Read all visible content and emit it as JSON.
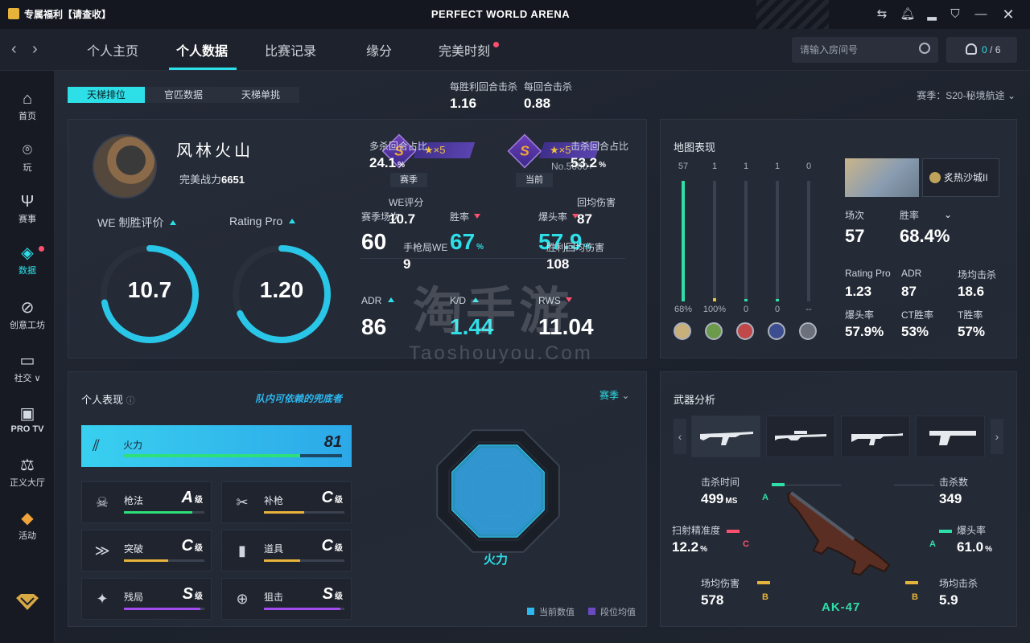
{
  "titlebar": {
    "promo": "专属福利【请查收】",
    "title": "PERFECT WORLD ARENA"
  },
  "nav": {
    "tabs": [
      "个人主页",
      "个人数据",
      "比赛记录",
      "缘分",
      "完美时刻"
    ],
    "active_tab": "个人数据",
    "room_placeholder": "请输入房间号",
    "friends_online": "0",
    "friends_total": "/ 6"
  },
  "sidebar": {
    "items": [
      {
        "label": "首页",
        "icon": "home-icon"
      },
      {
        "label": "玩",
        "icon": "play-icon"
      },
      {
        "label": "赛事",
        "icon": "trophy-icon"
      },
      {
        "label": "数据",
        "icon": "data-icon"
      },
      {
        "label": "创意工坊",
        "icon": "planet-icon"
      },
      {
        "label": "社交 ∨",
        "icon": "chat-icon"
      },
      {
        "label": "PRO TV",
        "icon": "tv-icon"
      },
      {
        "label": "正义大厅",
        "icon": "scale-icon"
      },
      {
        "label": "活动",
        "icon": "bag-icon"
      }
    ],
    "active": "数据"
  },
  "subtabs": [
    "天梯排位",
    "官匹数据",
    "天梯单挑"
  ],
  "season": "赛季：S20-秘境航途",
  "profile": {
    "name": "风林火山",
    "power_label": "完美战力",
    "power": "6651",
    "rank_season": {
      "letter": "S",
      "stars": "★×5",
      "label": "赛季"
    },
    "rank_current": {
      "letter": "S",
      "stars": "★×5",
      "label": "当前",
      "no": "No.5000+"
    },
    "we_label": "WE 制胜评价",
    "we_value": "10.7",
    "we_fraction": 0.72,
    "rating_label": "Rating Pro",
    "rating_value": "1.20",
    "rating_fraction": 0.68,
    "stats": [
      {
        "label": "赛季场次",
        "value": "60",
        "trend": "",
        "unit": ""
      },
      {
        "label": "胜率",
        "value": "67",
        "trend": "down",
        "unit": "%",
        "cyan": true
      },
      {
        "label": "爆头率",
        "value": "57.9",
        "trend": "down",
        "unit": "%",
        "cyan": true
      },
      {
        "label": "ADR",
        "value": "86",
        "trend": "up",
        "unit": ""
      },
      {
        "label": "K/D",
        "value": "1.44",
        "trend": "up",
        "unit": "",
        "cyan": true
      },
      {
        "label": "RWS",
        "value": "11.04",
        "trend": "down",
        "unit": ""
      }
    ]
  },
  "watermark": {
    "cn": "淘手游",
    "en": "Taoshouyou.Com"
  },
  "map_panel": {
    "title": "地图表现",
    "bars": [
      {
        "count": "57",
        "rate": "68%",
        "fill": 1.0,
        "color": "#2ee0a8"
      },
      {
        "count": "1",
        "rate": "100%",
        "fill": 0.03,
        "color": "#e8c33a"
      },
      {
        "count": "1",
        "rate": "0",
        "fill": 0.02,
        "color": "#2ee0a8"
      },
      {
        "count": "1",
        "rate": "0",
        "fill": 0.02,
        "color": "#2ee0a8"
      },
      {
        "count": "0",
        "rate": "--",
        "fill": 0.0,
        "color": "#2ee0a8"
      }
    ],
    "selected_map": "炙热沙城II",
    "matches_label": "场次",
    "matches": "57",
    "winrate_label": "胜率",
    "winrate": "68.4%",
    "details": [
      {
        "label": "Rating Pro",
        "value": "1.23"
      },
      {
        "label": "ADR",
        "value": "87"
      },
      {
        "label": "场均击杀",
        "value": "18.6"
      },
      {
        "label": "爆头率",
        "value": "57.9%"
      },
      {
        "label": "CT胜率",
        "value": "53%"
      },
      {
        "label": "T胜率",
        "value": "57%"
      }
    ]
  },
  "perf_panel": {
    "title": "个人表现",
    "tag": "队内可依赖的兜底者",
    "season": "赛季",
    "firepower": {
      "label": "火力",
      "value": "81",
      "fill": 0.81
    },
    "cards": [
      {
        "label": "枪法",
        "grade": "A",
        "suffix": "级",
        "fill": 0.85,
        "color": "#2ee07a"
      },
      {
        "label": "补枪",
        "grade": "C",
        "suffix": "级",
        "fill": 0.5,
        "color": "#e8b33a"
      },
      {
        "label": "突破",
        "grade": "C",
        "suffix": "级",
        "fill": 0.55,
        "color": "#e8b33a"
      },
      {
        "label": "道具",
        "grade": "C",
        "suffix": "级",
        "fill": 0.45,
        "color": "#e8b33a"
      },
      {
        "label": "残局",
        "grade": "S",
        "suffix": "级",
        "fill": 0.95,
        "color": "#a24cf0"
      },
      {
        "label": "狙击",
        "grade": "S",
        "suffix": "级",
        "fill": 0.95,
        "color": "#a24cf0"
      }
    ],
    "radar": {
      "center": "火力",
      "metrics": [
        {
          "label": "每胜利回合击杀",
          "value": "1.16",
          "unit": ""
        },
        {
          "label": "每回合击杀",
          "value": "0.88",
          "unit": ""
        },
        {
          "label": "击杀回合占比",
          "value": "53.2",
          "unit": "%"
        },
        {
          "label": "回均伤害",
          "value": "87",
          "unit": ""
        },
        {
          "label": "胜利回均伤害",
          "value": "108",
          "unit": ""
        },
        {
          "label": "手枪局WE",
          "value": "9",
          "unit": ""
        },
        {
          "label": "WE评分",
          "value": "10.7",
          "unit": ""
        },
        {
          "label": "多杀回合占比",
          "value": "24.1",
          "unit": "%"
        }
      ],
      "legend_current": "当前数值",
      "legend_avg": "段位均值"
    }
  },
  "weapon_panel": {
    "title": "武器分析",
    "weapon_name": "AK-47",
    "stats": [
      {
        "label": "击杀时间",
        "value": "499",
        "unit": "MS",
        "grade": "A",
        "grade_color": "#2ee0a8"
      },
      {
        "label": "击杀数",
        "value": "349",
        "unit": "",
        "grade": "",
        "grade_color": ""
      },
      {
        "label": "扫射精准度",
        "value": "12.2",
        "unit": "%",
        "grade": "C",
        "grade_color": "#ff4f6e"
      },
      {
        "label": "爆头率",
        "value": "61.0",
        "unit": "%",
        "grade": "A",
        "grade_color": "#2ee0a8"
      },
      {
        "label": "场均伤害",
        "value": "578",
        "unit": "",
        "grade": "B",
        "grade_color": "#e8b33a"
      },
      {
        "label": "场均击杀",
        "value": "5.9",
        "unit": "",
        "grade": "B",
        "grade_color": "#e8b33a"
      }
    ]
  }
}
